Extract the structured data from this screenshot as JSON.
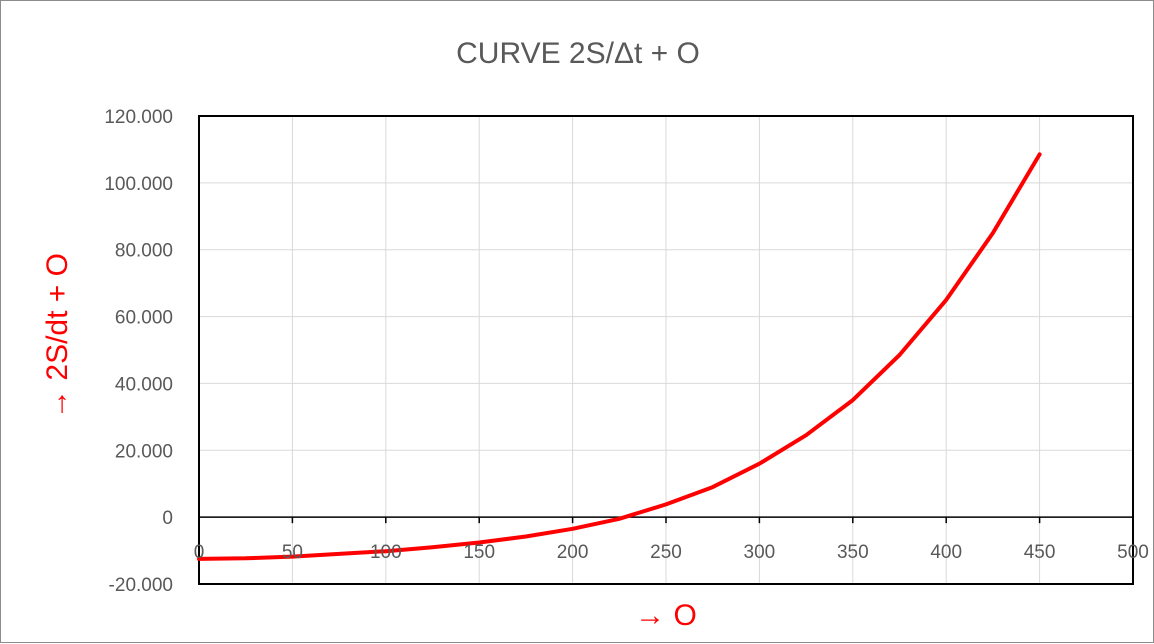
{
  "chart_data": {
    "type": "line",
    "title": "CURVE  2S/Δt + O",
    "xlabel": "→  O",
    "ylabel": "→  2S/dt + O",
    "xlim": [
      0,
      500
    ],
    "ylim": [
      -20,
      120
    ],
    "x_ticks": [
      0,
      50,
      100,
      150,
      200,
      250,
      300,
      350,
      400,
      450,
      500
    ],
    "x_tick_labels": [
      "0",
      "50",
      "100",
      "150",
      "200",
      "250",
      "300",
      "350",
      "400",
      "450",
      "500"
    ],
    "y_ticks": [
      -20,
      0,
      20,
      40,
      60,
      80,
      100,
      120
    ],
    "y_tick_labels": [
      "-20.000",
      "0",
      "20.000",
      "40.000",
      "60.000",
      "80.000",
      "100.000",
      "120.000"
    ],
    "grid": true,
    "legend": "none",
    "series": [
      {
        "color": "#ff0000",
        "x": [
          0,
          25,
          50,
          75,
          100,
          125,
          150,
          175,
          200,
          225,
          250,
          275,
          300,
          325,
          350,
          375,
          400,
          425,
          450
        ],
        "y": [
          -12.5,
          -12.3,
          -11.8,
          -11.0,
          -10.2,
          -9.0,
          -7.6,
          -5.8,
          -3.5,
          -0.5,
          3.8,
          9.0,
          16.0,
          24.5,
          35.0,
          48.5,
          65.0,
          85.0,
          108.5
        ]
      }
    ]
  }
}
